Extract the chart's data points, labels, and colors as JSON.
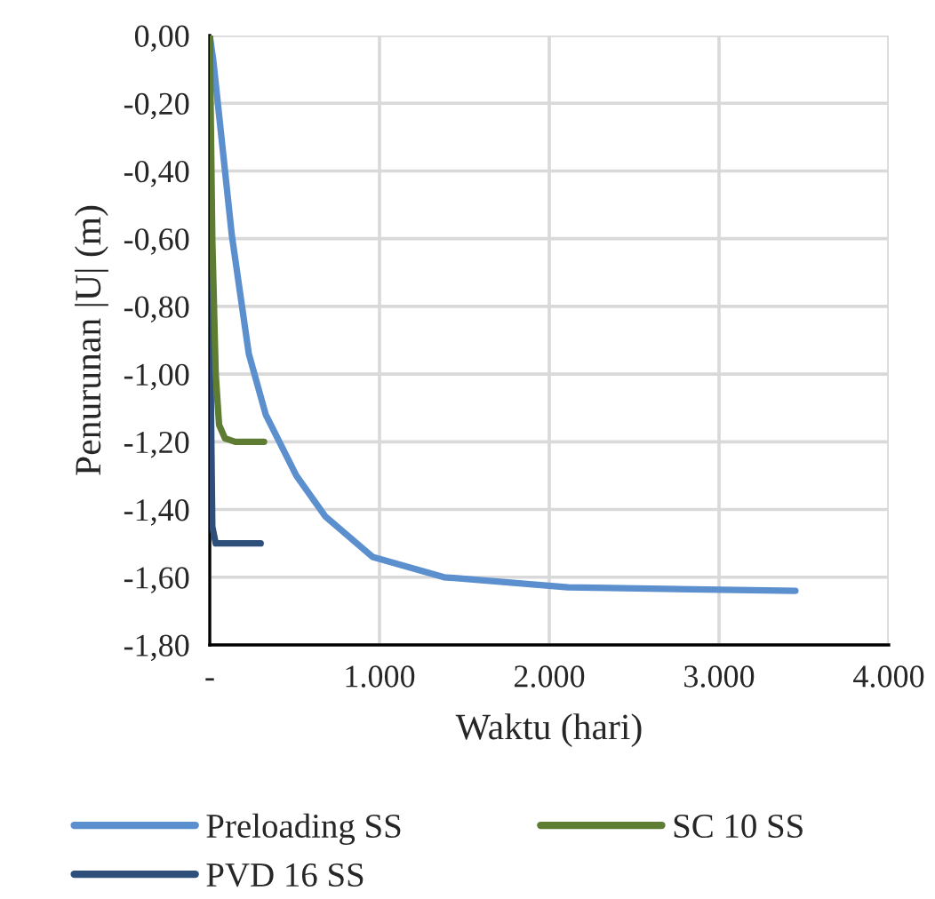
{
  "chart_data": {
    "type": "line",
    "xlabel": "Waktu (hari)",
    "ylabel": "Penurunan |U| (m)",
    "xlim": [
      0,
      4000
    ],
    "ylim": [
      -1.8,
      0
    ],
    "xticks": [
      {
        "value": 0,
        "label": "-"
      },
      {
        "value": 1000,
        "label": "1.000"
      },
      {
        "value": 2000,
        "label": "2.000"
      },
      {
        "value": 3000,
        "label": "3.000"
      },
      {
        "value": 4000,
        "label": "4.000"
      }
    ],
    "yticks": [
      {
        "value": 0,
        "label": "0,00"
      },
      {
        "value": -0.2,
        "label": "-0,20"
      },
      {
        "value": -0.4,
        "label": "-0,40"
      },
      {
        "value": -0.6,
        "label": "-0,60"
      },
      {
        "value": -0.8,
        "label": "-0,80"
      },
      {
        "value": -1.0,
        "label": "-1,00"
      },
      {
        "value": -1.2,
        "label": "-1,20"
      },
      {
        "value": -1.4,
        "label": "-1,40"
      },
      {
        "value": -1.6,
        "label": "-1,60"
      },
      {
        "value": -1.8,
        "label": "-1,80"
      }
    ],
    "grid": true,
    "legend": "bottom",
    "marker": "none",
    "line_style": "solid",
    "series": [
      {
        "name": "Preloading SS",
        "color": "#5b8fcd",
        "x": [
          0,
          20,
          130,
          230,
          330,
          510,
          680,
          960,
          1380,
          2110,
          3450
        ],
        "values": [
          0,
          -0.07,
          -0.59,
          -0.94,
          -1.12,
          -1.3,
          -1.42,
          -1.54,
          -1.6,
          -1.63,
          -1.64
        ]
      },
      {
        "name": "PVD 16 SS",
        "color": "#2e4f7a",
        "x": [
          0,
          5,
          15,
          35,
          100,
          300
        ],
        "values": [
          0,
          -1.0,
          -1.45,
          -1.5,
          -1.5,
          -1.5
        ]
      },
      {
        "name": "SC 10 SS",
        "color": "#5e7d33",
        "x": [
          0,
          15,
          35,
          55,
          90,
          150,
          320
        ],
        "values": [
          0,
          -0.6,
          -1.0,
          -1.15,
          -1.19,
          -1.2,
          -1.2
        ]
      }
    ]
  }
}
